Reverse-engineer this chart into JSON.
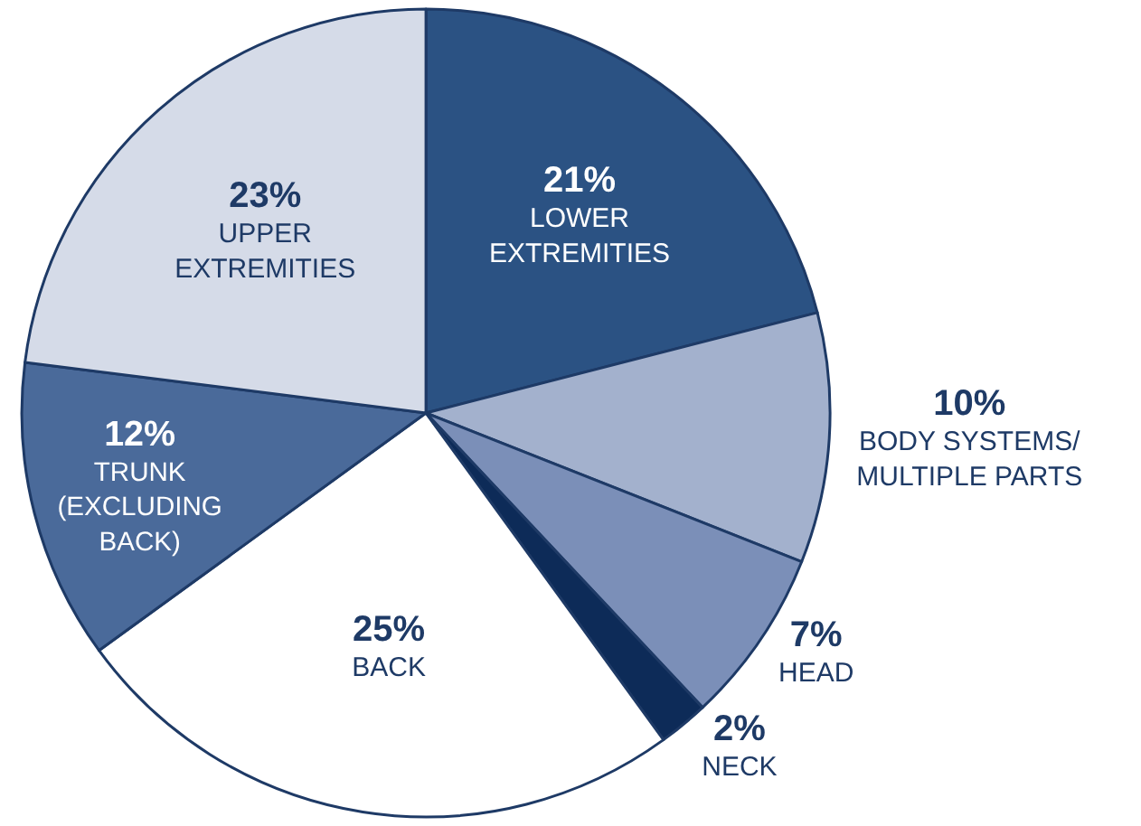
{
  "chart_data": {
    "type": "pie",
    "categories": [
      "LOWER\nEXTREMITIES",
      "BODY SYSTEMS/\nMULTIPLE PARTS",
      "HEAD",
      "NECK",
      "BACK",
      "TRUNK\n(EXCLUDING\nBACK)",
      "UPPER\nEXTREMITIES"
    ],
    "values": [
      21,
      10,
      7,
      2,
      25,
      12,
      23
    ],
    "colors": [
      "#2b5283",
      "#a3b1cd",
      "#7b8fb8",
      "#0d2b58",
      "#ffffff",
      "#4a6a9a",
      "#d5dbe8"
    ],
    "value_labels": [
      "21%",
      "10%",
      "7%",
      "2%",
      "25%",
      "12%",
      "23%"
    ],
    "legend": false
  }
}
